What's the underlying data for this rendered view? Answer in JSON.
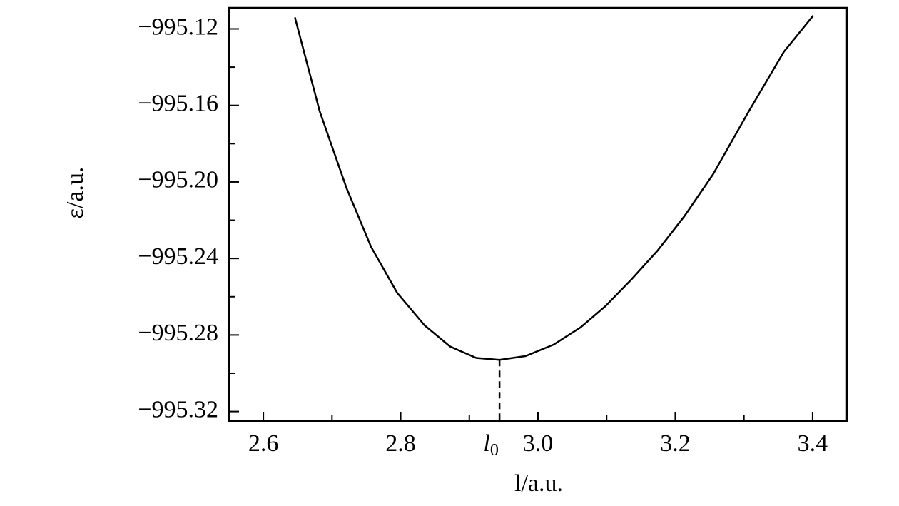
{
  "chart_data": {
    "type": "line",
    "x_label": "l/a.u.",
    "y_label": "ε/a.u.",
    "x": [
      2.646,
      2.682,
      2.721,
      2.757,
      2.795,
      2.835,
      2.872,
      2.91,
      2.944,
      2.982,
      3.023,
      3.062,
      3.098,
      3.136,
      3.174,
      3.213,
      3.255,
      3.304,
      3.358,
      3.401
    ],
    "series": [
      {
        "color": "#000000",
        "values": [
          -995.114,
          -995.163,
          -995.203,
          -995.234,
          -995.258,
          -995.275,
          -995.286,
          -995.292,
          -995.293,
          -995.291,
          -995.285,
          -995.276,
          -995.265,
          -995.251,
          -995.236,
          -995.218,
          -995.196,
          -995.165,
          -995.132,
          -995.113
        ]
      }
    ],
    "xlim": [
      2.55,
      3.45
    ],
    "ylim": [
      -995.325,
      -995.109
    ],
    "xticks": [
      2.6,
      2.8,
      {
        "value": 3,
        "label": "3.0"
      },
      3.2,
      3.4
    ],
    "xminor_ticks": [
      2.7,
      2.9,
      3.1,
      3.3
    ],
    "yticks": [
      {
        "value": -995.12,
        "label": "−995.12"
      },
      {
        "value": -995.16,
        "label": "−995.16"
      },
      {
        "value": -995.2,
        "label": "−995.20"
      },
      {
        "value": -995.24,
        "label": "−995.24"
      },
      {
        "value": -995.28,
        "label": "−995.28"
      },
      {
        "value": -995.32,
        "label": "−995.32"
      }
    ],
    "yminor_ticks": [
      -995.14,
      -995.18,
      -995.22,
      -995.26,
      -995.3
    ],
    "minimum_marker": {
      "label": "l",
      "subscript": "0",
      "x": 2.944,
      "y": -995.293
    }
  }
}
